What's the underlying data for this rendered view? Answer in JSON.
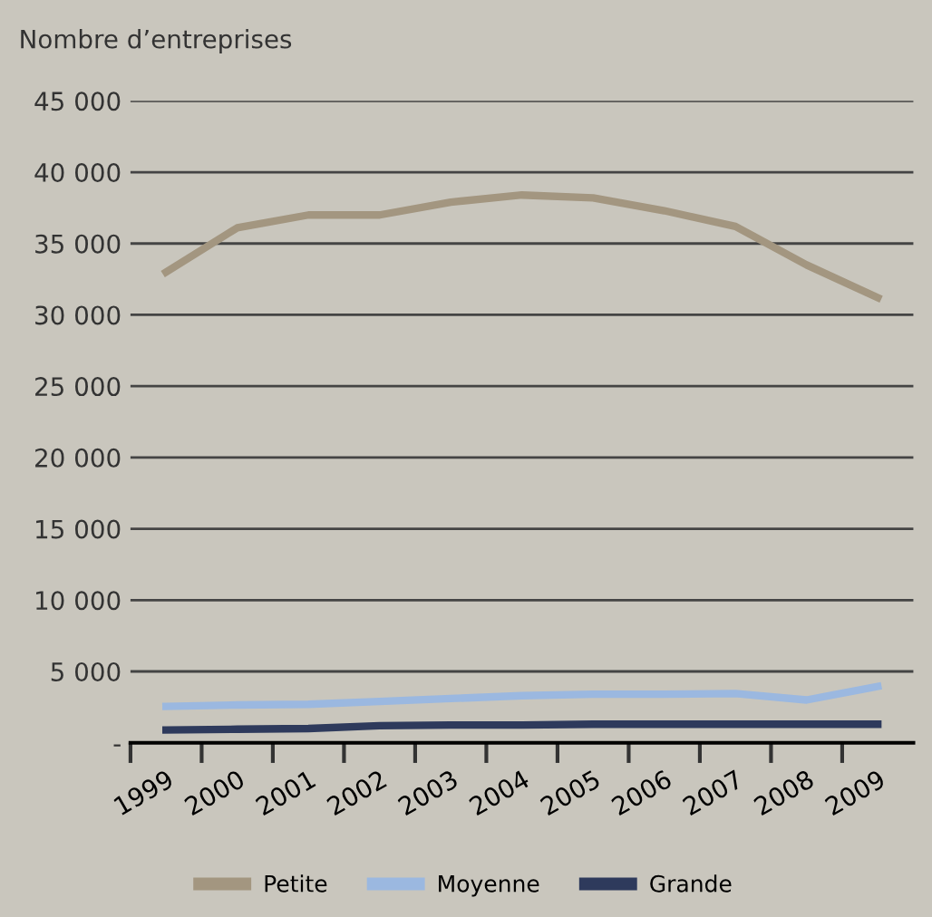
{
  "chart_data": {
    "type": "line",
    "ylabel": "Nombre d’entreprises",
    "categories": [
      "1999",
      "2000",
      "2001",
      "2002",
      "2003",
      "2004",
      "2005",
      "2006",
      "2007",
      "2008",
      "2009"
    ],
    "series": [
      {
        "name": "Petite",
        "color": "#a39680",
        "values": [
          33000,
          36100,
          37000,
          37000,
          37900,
          38400,
          38200,
          37300,
          36200,
          33500,
          31200
        ]
      },
      {
        "name": "Moyenne",
        "color": "#9bb8e0",
        "values": [
          2550,
          2650,
          2700,
          2900,
          3100,
          3300,
          3400,
          3400,
          3450,
          3000,
          3950
        ]
      },
      {
        "name": "Grande",
        "color": "#2e3a5c",
        "values": [
          900,
          950,
          1000,
          1200,
          1250,
          1250,
          1300,
          1300,
          1300,
          1300,
          1300
        ]
      }
    ],
    "ylim": [
      0,
      45000
    ],
    "yticks": [
      {
        "value": 0,
        "label": "-"
      },
      {
        "value": 5000,
        "label": "5 000"
      },
      {
        "value": 10000,
        "label": "10 000"
      },
      {
        "value": 15000,
        "label": "15 000"
      },
      {
        "value": 20000,
        "label": "20 000"
      },
      {
        "value": 25000,
        "label": "25 000"
      },
      {
        "value": 30000,
        "label": "30 000"
      },
      {
        "value": 35000,
        "label": "35 000"
      },
      {
        "value": 40000,
        "label": "40 000"
      },
      {
        "value": 45000,
        "label": "45 000"
      }
    ],
    "grid": "y",
    "legend": "bottom",
    "marker": "none",
    "line_style": "solid"
  }
}
